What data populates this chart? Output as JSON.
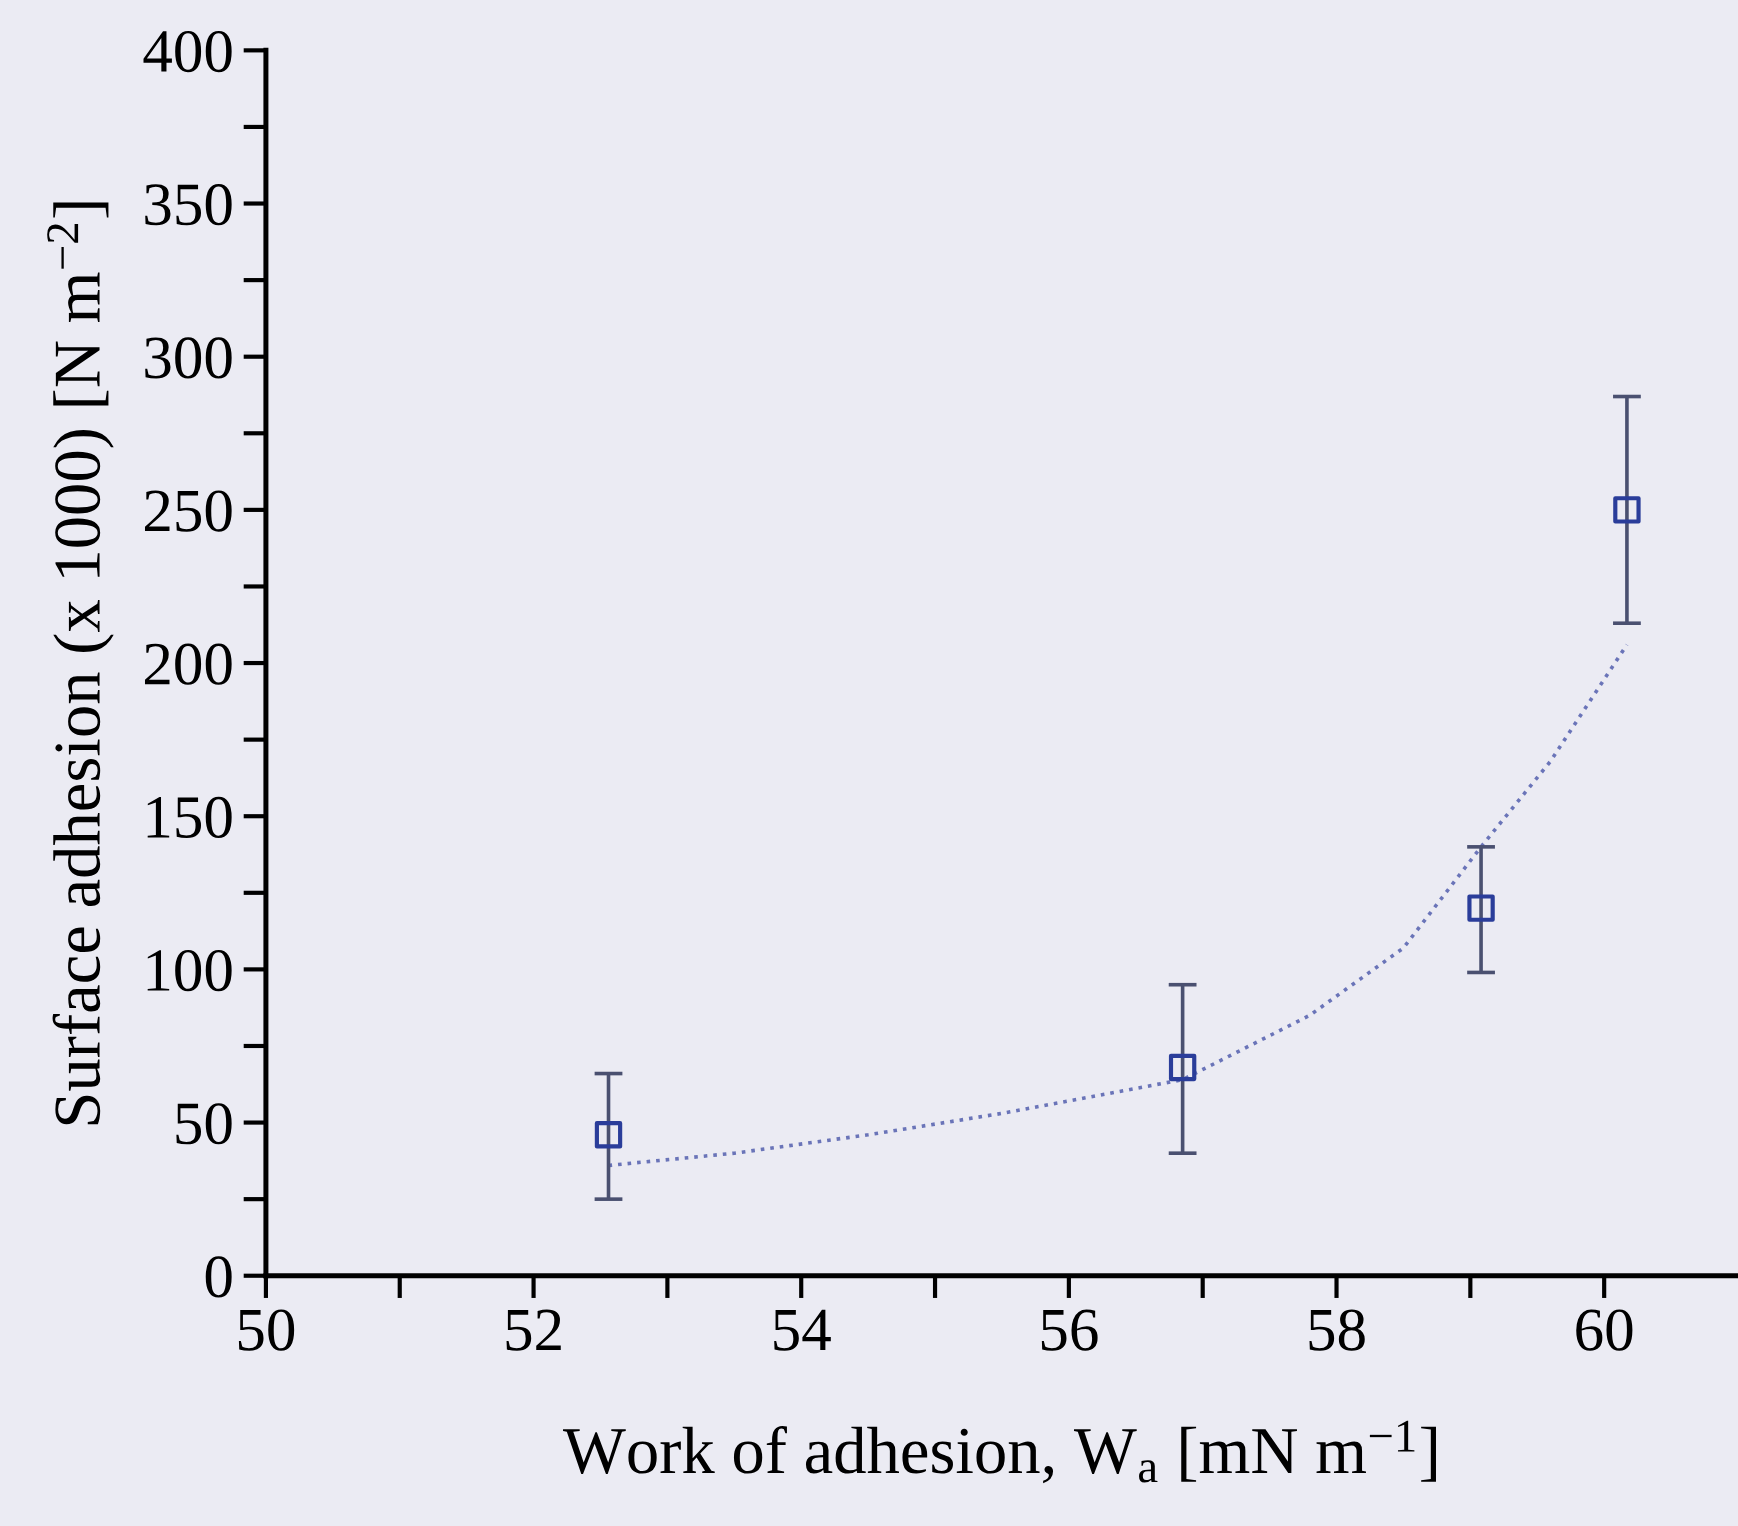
{
  "chart_data": {
    "type": "scatter",
    "xlabel": "Work of adhesion, W$_{a}$ [mN m$^{−1}$]",
    "ylabel": "Surface adhesion (x 1000) [N m$^{−2}$]",
    "xlim": [
      50,
      61
    ],
    "ylim": [
      0,
      400
    ],
    "xticks": [
      50,
      {
        "value": 51,
        "label": null
      },
      52,
      {
        "value": 53,
        "label": null
      },
      54,
      {
        "value": 55,
        "label": null
      },
      56,
      {
        "value": 57,
        "label": null
      },
      58,
      {
        "value": 59,
        "label": null
      },
      60
    ],
    "yticks": [
      0,
      {
        "value": 25,
        "label": null
      },
      50,
      {
        "value": 75,
        "label": null
      },
      100,
      {
        "value": 125,
        "label": null
      },
      150,
      {
        "value": 175,
        "label": null
      },
      200,
      {
        "value": 225,
        "label": null
      },
      250,
      {
        "value": 275,
        "label": null
      },
      300,
      {
        "value": 325,
        "label": null
      },
      350,
      {
        "value": 375,
        "label": null
      },
      400
    ],
    "grid": false,
    "legend": false,
    "series": [
      {
        "marker": "square",
        "color": "#2a3d9a",
        "x": [
          52.56,
          56.85,
          59.08,
          60.17
        ],
        "values": [
          46,
          68,
          120,
          250
        ],
        "errors": [
          [
            25,
            66
          ],
          [
            40,
            95
          ],
          [
            99,
            140
          ],
          [
            213,
            287
          ]
        ]
      },
      {
        "type": "line",
        "line_style": "dotted",
        "marker": "none",
        "color": "#6a74b8",
        "x": [
          52.56,
          53.5,
          54.5,
          55.5,
          56.85,
          57.8,
          58.5,
          59.08,
          59.6,
          60.17
        ],
        "values": [
          36,
          40,
          46,
          53,
          64,
          85,
          107,
          140,
          168,
          206
        ]
      }
    ]
  }
}
